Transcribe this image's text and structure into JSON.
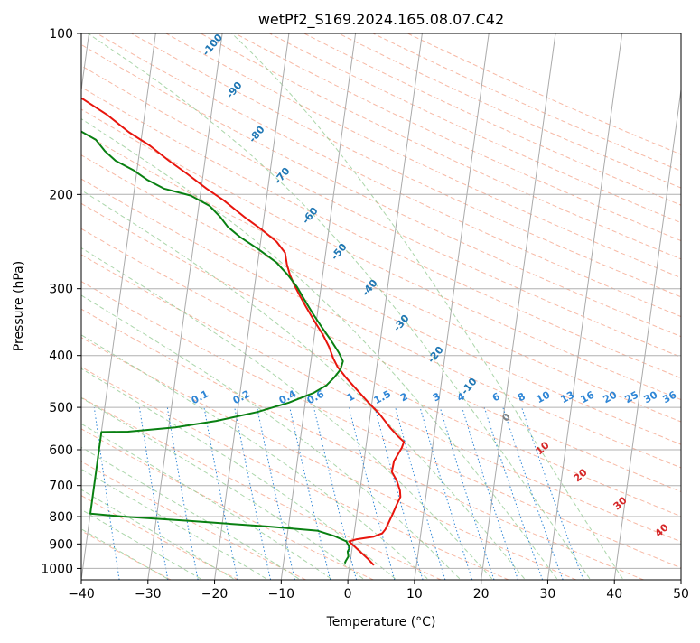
{
  "chart_data": {
    "type": "line",
    "title": "wetPf2_S169.2024.165.08.07.C42",
    "xlabel": "Temperature (°C)",
    "ylabel": "Pressure (hPa)",
    "xlim": [
      -40,
      50
    ],
    "ylim": [
      1050,
      100
    ],
    "y_scale": "log",
    "grid": true,
    "x_ticks": [
      -40,
      -30,
      -20,
      -10,
      0,
      10,
      20,
      30,
      40,
      50
    ],
    "y_ticks": [
      100,
      200,
      300,
      400,
      500,
      600,
      700,
      800,
      900,
      1000
    ],
    "x_tick_labels": [
      "−40",
      "−30",
      "−20",
      "−10",
      "0",
      "10",
      "20",
      "30",
      "40",
      "50"
    ],
    "y_tick_labels": [
      "100",
      "200",
      "300",
      "400",
      "500",
      "600",
      "700",
      "800",
      "900",
      "1000"
    ],
    "colors": {
      "temperature": "#e8150d",
      "dewpoint": "#098012",
      "isotherms": "#aaaaaa",
      "dry_adiabats": "#f4a287",
      "moist_adiabats": "#8fc88d",
      "mixing_ratio": "#2f86d6",
      "isotherm_labels": "#1f77b4",
      "dry_adiabat_labels": "#d62728",
      "dry_adiabat_zero_label": "#7f7f7f"
    },
    "series": [
      {
        "name": "",
        "color": "#e8150d",
        "points": [
          [
            3.6,
            986
          ],
          [
            2.6,
            960
          ],
          [
            0.8,
            920
          ],
          [
            -0.6,
            890
          ],
          [
            0.5,
            882
          ],
          [
            3.0,
            872
          ],
          [
            4.2,
            860
          ],
          [
            4.6,
            845
          ],
          [
            4.9,
            825
          ],
          [
            5.4,
            790
          ],
          [
            5.8,
            760
          ],
          [
            6.2,
            735
          ],
          [
            6.0,
            715
          ],
          [
            5.3,
            685
          ],
          [
            4.4,
            660
          ],
          [
            4.5,
            630
          ],
          [
            5.4,
            595
          ],
          [
            5.6,
            580
          ],
          [
            4.5,
            565
          ],
          [
            3.2,
            545
          ],
          [
            1.4,
            515
          ],
          [
            -0.5,
            490
          ],
          [
            -2.4,
            465
          ],
          [
            -4.4,
            440
          ],
          [
            -5.9,
            420
          ],
          [
            -6.7,
            405
          ],
          [
            -7.6,
            385
          ],
          [
            -8.8,
            365
          ],
          [
            -10.3,
            345
          ],
          [
            -11.8,
            325
          ],
          [
            -13.1,
            308
          ],
          [
            -14.0,
            296
          ],
          [
            -14.9,
            283
          ],
          [
            -15.6,
            270
          ],
          [
            -16.1,
            257
          ],
          [
            -17.6,
            245
          ],
          [
            -20.0,
            233
          ],
          [
            -23.0,
            220
          ],
          [
            -26.4,
            205
          ],
          [
            -29.2,
            195
          ],
          [
            -32.4,
            183
          ],
          [
            -35.4,
            173
          ],
          [
            -38.6,
            162
          ],
          [
            -42.0,
            153
          ],
          [
            -45.6,
            142
          ],
          [
            -49.4,
            133
          ],
          [
            -53.6,
            125
          ],
          [
            -57.6,
            118
          ],
          [
            -62.0,
            111
          ],
          [
            -66.4,
            105
          ],
          [
            -70.8,
            100
          ]
        ]
      },
      {
        "name": "",
        "color": "#098012",
        "points": [
          [
            -0.8,
            978
          ],
          [
            -0.7,
            968
          ],
          [
            -0.4,
            950
          ],
          [
            -0.6,
            930
          ],
          [
            -0.4,
            915
          ],
          [
            -1.0,
            890
          ],
          [
            -2.9,
            870
          ],
          [
            -5.6,
            850
          ],
          [
            -13.0,
            835
          ],
          [
            -25.0,
            815
          ],
          [
            -35.0,
            800
          ],
          [
            -40.0,
            790
          ],
          [
            -40.0,
            556
          ],
          [
            -36.0,
            555
          ],
          [
            -29.0,
            545
          ],
          [
            -23.0,
            530
          ],
          [
            -17.0,
            510
          ],
          [
            -12.5,
            490
          ],
          [
            -9.0,
            470
          ],
          [
            -7.2,
            455
          ],
          [
            -6.2,
            440
          ],
          [
            -5.4,
            425
          ],
          [
            -5.2,
            410
          ],
          [
            -6.0,
            395
          ],
          [
            -7.4,
            375
          ],
          [
            -9.0,
            355
          ],
          [
            -10.6,
            335
          ],
          [
            -12.2,
            315
          ],
          [
            -13.6,
            298
          ],
          [
            -15.2,
            283
          ],
          [
            -17.2,
            268
          ],
          [
            -20.2,
            253
          ],
          [
            -23.2,
            240
          ],
          [
            -25.2,
            230
          ],
          [
            -26.6,
            220
          ],
          [
            -28.4,
            210
          ],
          [
            -31.4,
            201
          ],
          [
            -35.6,
            195
          ],
          [
            -38.2,
            188
          ],
          [
            -40.6,
            180
          ],
          [
            -43.4,
            173
          ],
          [
            -45.2,
            166
          ],
          [
            -46.8,
            158
          ],
          [
            -49.4,
            152
          ],
          [
            -53.0,
            145
          ],
          [
            -57.4,
            139
          ],
          [
            -62.4,
            131
          ],
          [
            -68.2,
            122
          ],
          [
            -74.0,
            114
          ],
          [
            -80.2,
            106
          ],
          [
            -86.4,
            100
          ]
        ]
      }
    ],
    "isotherm_labels": [
      "-100",
      "-90",
      "-80",
      "-70",
      "-60",
      "-50",
      "-40",
      "-30",
      "-20",
      "-10"
    ],
    "mixing_ratio_labels": [
      "0.1",
      "0.2",
      "0.4",
      "0.6",
      "1",
      "1.5",
      "2",
      "3",
      "4",
      "6",
      "8",
      "10",
      "13",
      "16",
      "20",
      "25",
      "30",
      "36"
    ],
    "dry_adiabat_labels": [
      "0",
      "10",
      "20",
      "30",
      "40"
    ]
  }
}
